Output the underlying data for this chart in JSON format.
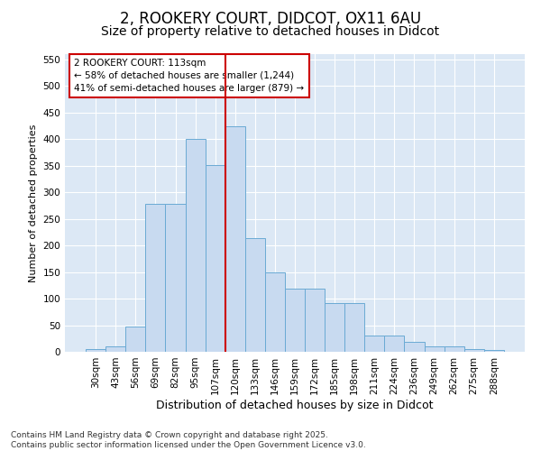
{
  "title": "2, ROOKERY COURT, DIDCOT, OX11 6AU",
  "subtitle": "Size of property relative to detached houses in Didcot",
  "xlabel": "Distribution of detached houses by size in Didcot",
  "ylabel": "Number of detached properties",
  "categories": [
    "30sqm",
    "43sqm",
    "56sqm",
    "69sqm",
    "82sqm",
    "95sqm",
    "107sqm",
    "120sqm",
    "133sqm",
    "146sqm",
    "159sqm",
    "172sqm",
    "185sqm",
    "198sqm",
    "211sqm",
    "224sqm",
    "236sqm",
    "249sqm",
    "262sqm",
    "275sqm",
    "288sqm"
  ],
  "values": [
    5,
    10,
    48,
    278,
    278,
    400,
    352,
    425,
    213,
    150,
    118,
    118,
    92,
    92,
    30,
    30,
    19,
    10,
    10,
    5,
    3
  ],
  "bar_color": "#c8daf0",
  "bar_edge_color": "#6aaad4",
  "vline_x_index": 7,
  "vline_color": "#cc0000",
  "annotation_text": "2 ROOKERY COURT: 113sqm\n← 58% of detached houses are smaller (1,244)\n41% of semi-detached houses are larger (879) →",
  "annotation_box_color": "#ffffff",
  "annotation_box_edge": "#cc0000",
  "ylim": [
    0,
    560
  ],
  "yticks": [
    0,
    50,
    100,
    150,
    200,
    250,
    300,
    350,
    400,
    450,
    500,
    550
  ],
  "plot_bg_color": "#dce8f5",
  "fig_bg_color": "#ffffff",
  "grid_color": "#ffffff",
  "footer": "Contains HM Land Registry data © Crown copyright and database right 2025.\nContains public sector information licensed under the Open Government Licence v3.0.",
  "title_fontsize": 12,
  "subtitle_fontsize": 10,
  "xlabel_fontsize": 9,
  "ylabel_fontsize": 8,
  "tick_fontsize": 7.5,
  "annotation_fontsize": 7.5,
  "footer_fontsize": 6.5
}
